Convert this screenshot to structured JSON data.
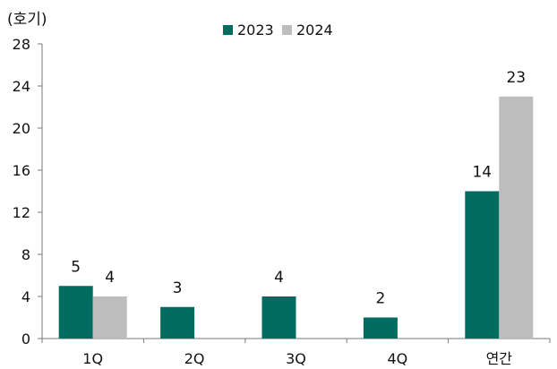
{
  "chart_data": {
    "type": "bar",
    "unit_label": "(호기)",
    "categories": [
      "1Q",
      "2Q",
      "3Q",
      "4Q",
      "연간"
    ],
    "series": [
      {
        "name": "2023",
        "color": "#006B5F",
        "values": [
          5,
          3,
          4,
          2,
          14
        ],
        "labels": [
          "5",
          "3",
          "4",
          "2",
          "14"
        ]
      },
      {
        "name": "2024",
        "color": "#BDBDBD",
        "values": [
          4,
          null,
          null,
          null,
          23
        ],
        "labels": [
          "4",
          "",
          "",
          "",
          "23"
        ]
      }
    ],
    "ylim": [
      0,
      28
    ],
    "yticks": [
      0,
      4,
      8,
      12,
      16,
      20,
      24,
      28
    ],
    "ytick_labels": [
      "0",
      "4",
      "8",
      "12",
      "16",
      "20",
      "24",
      "28"
    ],
    "grid": false,
    "legend_position": "top-center"
  }
}
